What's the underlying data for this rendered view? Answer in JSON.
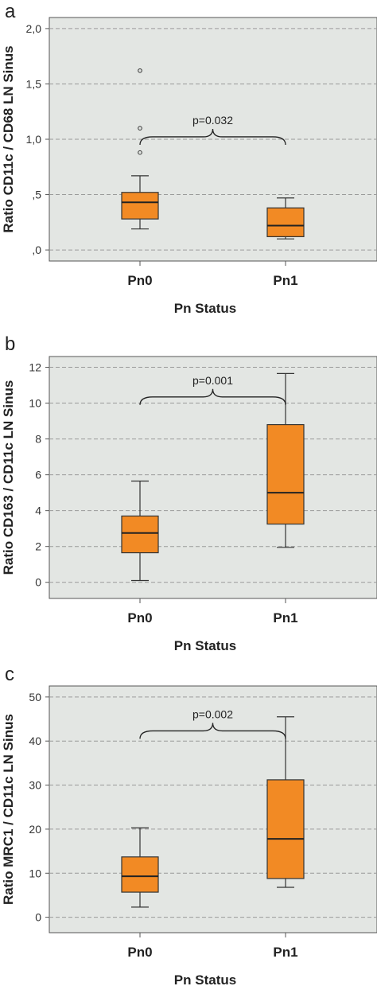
{
  "chart_data": [
    {
      "type": "box",
      "panel_label": "a",
      "xlabel": "Pn Status",
      "ylabel": "Ratio CD11c / CD68 LN Sinus",
      "ylim": [
        -0.1,
        2.1
      ],
      "yticks": [
        0,
        0.5,
        1.0,
        1.5,
        2.0
      ],
      "ytick_labels": [
        ",0",
        ",5",
        "1,0",
        "1,5",
        "2,0"
      ],
      "grid": true,
      "categories": [
        "Pn0",
        "Pn1"
      ],
      "boxes": [
        {
          "category": "Pn0",
          "whisker_low": 0.19,
          "q1": 0.28,
          "median": 0.43,
          "q3": 0.52,
          "whisker_high": 0.67,
          "outliers": [
            0.88,
            1.1,
            1.62
          ]
        },
        {
          "category": "Pn1",
          "whisker_low": 0.1,
          "q1": 0.12,
          "median": 0.22,
          "q3": 0.38,
          "whisker_high": 0.47,
          "outliers": []
        }
      ],
      "annotation": {
        "text": "p=0.032",
        "bracket_y": 0.95
      }
    },
    {
      "type": "box",
      "panel_label": "b",
      "xlabel": "Pn Status",
      "ylabel": "Ratio CD163 / CD11c LN Sinus",
      "ylim": [
        -0.9,
        12.6
      ],
      "yticks": [
        0,
        2,
        4,
        6,
        8,
        10,
        12
      ],
      "ytick_labels": [
        "0",
        "2",
        "4",
        "6",
        "8",
        "10",
        "12"
      ],
      "grid": true,
      "categories": [
        "Pn0",
        "Pn1"
      ],
      "boxes": [
        {
          "category": "Pn0",
          "whisker_low": 0.1,
          "q1": 1.65,
          "median": 2.75,
          "q3": 3.7,
          "whisker_high": 5.65,
          "outliers": []
        },
        {
          "category": "Pn1",
          "whisker_low": 1.95,
          "q1": 3.25,
          "median": 5.0,
          "q3": 8.8,
          "whisker_high": 11.65,
          "outliers": []
        }
      ],
      "annotation": {
        "text": "p=0.001",
        "bracket_y": 9.9
      }
    },
    {
      "type": "box",
      "panel_label": "c",
      "xlabel": "Pn Status",
      "ylabel": "Ratio MRC1 / CD11c LN Sinus",
      "ylim": [
        -3.5,
        52.5
      ],
      "yticks": [
        0,
        10,
        20,
        30,
        40,
        50
      ],
      "ytick_labels": [
        "0",
        "10",
        "20",
        "30",
        "40",
        "50"
      ],
      "grid": true,
      "categories": [
        "Pn0",
        "Pn1"
      ],
      "boxes": [
        {
          "category": "Pn0",
          "whisker_low": 2.3,
          "q1": 5.7,
          "median": 9.3,
          "q3": 13.7,
          "whisker_high": 20.3,
          "outliers": []
        },
        {
          "category": "Pn1",
          "whisker_low": 6.8,
          "q1": 8.8,
          "median": 17.8,
          "q3": 31.2,
          "whisker_high": 45.5,
          "outliers": []
        }
      ],
      "annotation": {
        "text": "p=0.002",
        "bracket_y": 40.5
      }
    }
  ],
  "colors": {
    "plot_background": "#e3e6e3",
    "box_fill": "#f28a24",
    "box_stroke": "#333333",
    "grid": "#9a9a9a"
  }
}
